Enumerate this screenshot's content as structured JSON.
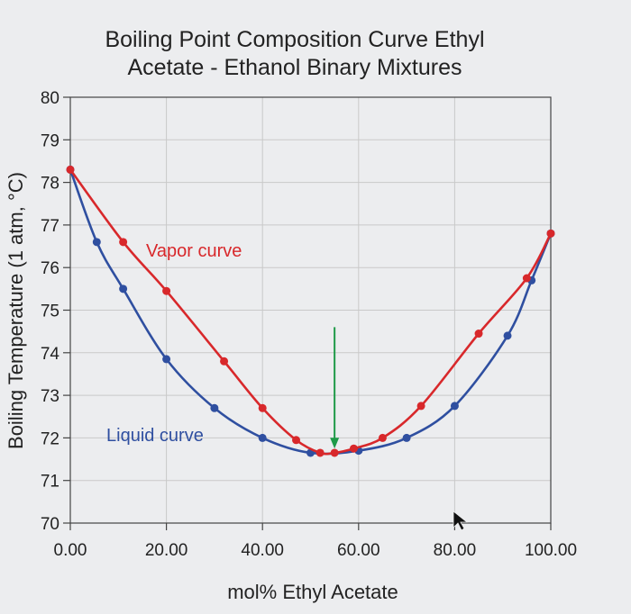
{
  "chart_data": {
    "type": "line",
    "title": [
      "Boiling Point Composition Curve Ethyl",
      "Acetate - Ethanol Binary Mixtures"
    ],
    "xlabel": "mol% Ethyl Acetate",
    "ylabel": "Boiling Temperature (1 atm, °C)",
    "xlim": [
      0,
      100
    ],
    "ylim": [
      70,
      80
    ],
    "xticks": [
      "0.00",
      "20.00",
      "40.00",
      "60.00",
      "80.00",
      "100.00"
    ],
    "yticks": [
      "70",
      "71",
      "72",
      "73",
      "74",
      "75",
      "76",
      "77",
      "78",
      "79",
      "80"
    ],
    "grid": true,
    "series": [
      {
        "name": "Liquid curve",
        "color": "#2f4fa0",
        "x": [
          0,
          5.5,
          11,
          20,
          30,
          40,
          50,
          60,
          70,
          80,
          91,
          96,
          100
        ],
        "y": [
          78.3,
          76.6,
          75.5,
          73.85,
          72.7,
          72.0,
          71.65,
          71.7,
          72.0,
          72.75,
          74.4,
          75.7,
          76.8
        ]
      },
      {
        "name": "Vapor curve",
        "color": "#d8282b",
        "x": [
          0,
          11,
          20,
          32,
          40,
          47,
          52,
          55,
          59,
          65,
          73,
          85,
          95,
          100
        ],
        "y": [
          78.3,
          76.6,
          75.45,
          73.8,
          72.7,
          71.95,
          71.65,
          71.65,
          71.75,
          72.0,
          72.75,
          74.45,
          75.75,
          76.8
        ]
      }
    ],
    "annotations": [
      {
        "type": "arrow",
        "color": "#1f9a48",
        "x": 55,
        "y_from": 74.6,
        "y_to": 71.75
      }
    ]
  }
}
